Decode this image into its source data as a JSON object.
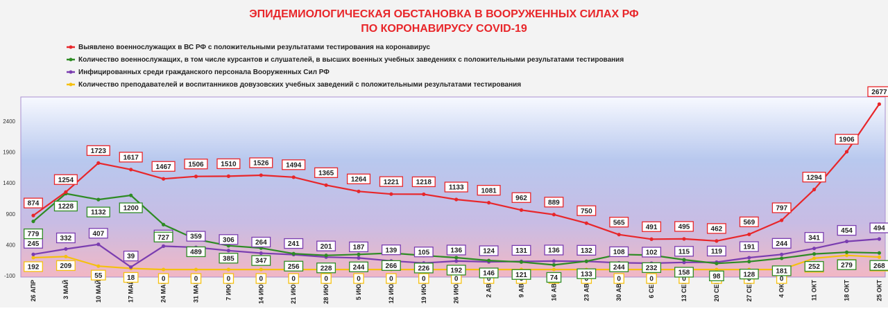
{
  "chart_data": {
    "type": "line",
    "title": "ЭПИДЕМИОЛОГИЧЕСКАЯ ОБСТАНОВКА В ВООРУЖЕННЫХ СИЛАХ РФ",
    "subtitle": "ПО КОРОНАВИРУСУ COVID-19",
    "xlabel": "",
    "ylabel": "",
    "ylim": [
      -100,
      2800
    ],
    "yticks": [
      -100,
      400,
      900,
      1400,
      1900,
      2400
    ],
    "grid": false,
    "legend_position": "top-left",
    "categories": [
      "26 АПР",
      "3 МАЙ",
      "10 МАЙ",
      "17 МАЙ",
      "24 МАЙ",
      "31 МАЙ",
      "7 ИЮН",
      "14 ИЮН",
      "21 ИЮН",
      "28 ИЮН",
      "5 ИЮЛ",
      "12 ИЮЛ",
      "19 ИЮЛ",
      "26 ИЮЛ",
      "2 АВГ",
      "9 АВГ",
      "16 АВГ",
      "23 АВГ",
      "30 АВГ",
      "6 СЕН",
      "13 СЕН",
      "20 СЕН",
      "27 СЕН",
      "4 ОКТ",
      "11 ОКТ",
      "18 ОКТ",
      "25 ОКТ"
    ],
    "series": [
      {
        "name": "Выявлено военнослужащих в ВС РФ с положительными результатами тестирования на коронавирус",
        "color": "#e8262a",
        "values": [
          874,
          1254,
          1723,
          1617,
          1467,
          1506,
          1510,
          1526,
          1494,
          1365,
          1264,
          1221,
          1218,
          1133,
          1081,
          962,
          889,
          750,
          565,
          491,
          495,
          462,
          569,
          797,
          1294,
          1906,
          2677
        ]
      },
      {
        "name": "Количество военнослужащих, в том числе курсантов и слушателей, в высших военных учебных заведениях с положительными результатами тестирования",
        "color": "#2e8b24",
        "values": [
          779,
          1228,
          1132,
          1200,
          727,
          489,
          385,
          347,
          256,
          228,
          244,
          266,
          226,
          192,
          146,
          121,
          74,
          133,
          244,
          232,
          158,
          98,
          128,
          181,
          252,
          279,
          268
        ]
      },
      {
        "name": "Инфицированных среди гражданского персонала Вооруженных Сил РФ",
        "color": "#7a3db0",
        "values": [
          245,
          332,
          407,
          39,
          378,
          359,
          306,
          264,
          241,
          201,
          187,
          139,
          105,
          136,
          124,
          131,
          136,
          132,
          108,
          102,
          115,
          119,
          191,
          244,
          341,
          454,
          494
        ]
      },
      {
        "name": "Количество преподавателей и воспитанников довузовских учебных заведений с положительными результатами тестирования",
        "color": "#f5c010",
        "values": [
          192,
          209,
          55,
          18,
          0,
          0,
          0,
          0,
          0,
          0,
          0,
          0,
          0,
          0,
          0,
          0,
          0,
          0,
          0,
          0,
          0,
          0,
          0,
          0,
          181,
          229,
          201
        ]
      }
    ]
  }
}
